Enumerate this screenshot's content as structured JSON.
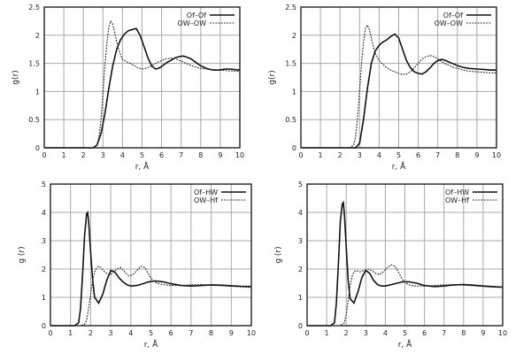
{
  "chart_data": [
    {
      "type": "line",
      "xlabel": "r, Å",
      "ylabel": "g(r)",
      "xlim": [
        0,
        10
      ],
      "ylim": [
        0,
        2.5
      ],
      "xticks": [
        "0",
        "1",
        "2",
        "3",
        "4",
        "5",
        "6",
        "7",
        "8",
        "9",
        "10"
      ],
      "yticks": [
        "0",
        "0.5",
        "1",
        "1.5",
        "2",
        "2.5"
      ],
      "grid": true,
      "legend_position": "top-right",
      "series": [
        {
          "name": "Of–Of",
          "style": "solid",
          "x": [
            0,
            2.5,
            2.7,
            2.9,
            3.1,
            3.3,
            3.5,
            3.7,
            3.9,
            4.1,
            4.3,
            4.5,
            4.7,
            4.9,
            5.1,
            5.3,
            5.5,
            5.7,
            5.9,
            6.1,
            6.3,
            6.5,
            6.7,
            6.9,
            7.1,
            7.3,
            7.5,
            7.7,
            7.9,
            8.1,
            8.3,
            8.5,
            8.7,
            8.9,
            9.1,
            9.3,
            9.5,
            9.7,
            10
          ],
          "y": [
            0,
            0,
            0.05,
            0.25,
            0.6,
            1.05,
            1.45,
            1.75,
            1.92,
            2.02,
            2.08,
            2.1,
            2.12,
            2.0,
            1.8,
            1.6,
            1.45,
            1.4,
            1.42,
            1.47,
            1.52,
            1.56,
            1.6,
            1.62,
            1.63,
            1.61,
            1.58,
            1.53,
            1.48,
            1.44,
            1.41,
            1.39,
            1.38,
            1.38,
            1.39,
            1.4,
            1.4,
            1.39,
            1.38
          ]
        },
        {
          "name": "OW–OW",
          "style": "dotted",
          "x": [
            0,
            2.5,
            2.7,
            2.8,
            2.9,
            3.0,
            3.1,
            3.2,
            3.3,
            3.4,
            3.5,
            3.6,
            3.7,
            3.8,
            3.9,
            4.0,
            4.2,
            4.4,
            4.6,
            4.8,
            5.0,
            5.2,
            5.4,
            5.6,
            5.8,
            6.0,
            6.2,
            6.4,
            6.6,
            6.8,
            7.0,
            7.2,
            7.4,
            7.6,
            7.8,
            8.0,
            8.3,
            8.6,
            9.0,
            9.4,
            9.7,
            10
          ],
          "y": [
            0,
            0,
            0.05,
            0.2,
            0.5,
            0.95,
            1.45,
            1.85,
            2.15,
            2.25,
            2.2,
            2.05,
            1.88,
            1.75,
            1.65,
            1.57,
            1.53,
            1.5,
            1.46,
            1.42,
            1.4,
            1.41,
            1.44,
            1.48,
            1.52,
            1.55,
            1.58,
            1.59,
            1.59,
            1.57,
            1.54,
            1.51,
            1.48,
            1.45,
            1.43,
            1.41,
            1.4,
            1.39,
            1.38,
            1.37,
            1.36,
            1.36
          ]
        }
      ]
    },
    {
      "type": "line",
      "xlabel": "r, Å",
      "ylabel": "g(r)",
      "xlim": [
        0,
        10
      ],
      "ylim": [
        0,
        2.5
      ],
      "xticks": [
        "0",
        "1",
        "2",
        "3",
        "4",
        "5",
        "6",
        "7",
        "8",
        "9",
        "10"
      ],
      "yticks": [
        "0",
        "0.5",
        "1",
        "1.5",
        "2",
        "2.5"
      ],
      "grid": true,
      "legend_position": "top-right",
      "series": [
        {
          "name": "Of–Of",
          "style": "solid",
          "x": [
            0,
            2.8,
            3.0,
            3.2,
            3.4,
            3.6,
            3.8,
            4.0,
            4.2,
            4.4,
            4.6,
            4.8,
            5.0,
            5.2,
            5.4,
            5.6,
            5.8,
            6.0,
            6.2,
            6.4,
            6.6,
            6.8,
            7.0,
            7.2,
            7.4,
            7.6,
            7.8,
            8.0,
            8.3,
            8.6,
            9.0,
            9.4,
            9.7,
            10
          ],
          "y": [
            0,
            0,
            0.08,
            0.5,
            1.05,
            1.5,
            1.72,
            1.82,
            1.88,
            1.92,
            1.98,
            2.02,
            1.95,
            1.75,
            1.55,
            1.42,
            1.35,
            1.32,
            1.31,
            1.35,
            1.42,
            1.5,
            1.55,
            1.57,
            1.55,
            1.52,
            1.49,
            1.46,
            1.43,
            1.41,
            1.4,
            1.39,
            1.38,
            1.38
          ]
        },
        {
          "name": "OW–OW",
          "style": "dotted",
          "x": [
            0,
            2.5,
            2.7,
            2.8,
            2.9,
            3.0,
            3.1,
            3.2,
            3.3,
            3.4,
            3.5,
            3.6,
            3.7,
            3.8,
            4.0,
            4.2,
            4.4,
            4.6,
            4.8,
            5.0,
            5.2,
            5.4,
            5.6,
            5.8,
            6.0,
            6.2,
            6.4,
            6.6,
            6.8,
            7.0,
            7.2,
            7.4,
            7.6,
            7.8,
            8.0,
            8.3,
            8.6,
            9.0,
            9.4,
            9.7,
            10
          ],
          "y": [
            0,
            0,
            0.05,
            0.2,
            0.55,
            1.0,
            1.5,
            1.88,
            2.12,
            2.18,
            2.1,
            1.95,
            1.8,
            1.68,
            1.55,
            1.48,
            1.42,
            1.38,
            1.35,
            1.32,
            1.3,
            1.31,
            1.35,
            1.42,
            1.5,
            1.58,
            1.62,
            1.64,
            1.62,
            1.58,
            1.53,
            1.49,
            1.46,
            1.43,
            1.41,
            1.38,
            1.36,
            1.35,
            1.34,
            1.33,
            1.33
          ]
        }
      ]
    },
    {
      "type": "line",
      "xlabel": "r, Å",
      "ylabel": "g (r)",
      "xlim": [
        0,
        10
      ],
      "ylim": [
        0,
        5
      ],
      "xticks": [
        "0",
        "1",
        "2",
        "3",
        "4",
        "5",
        "6",
        "7",
        "8",
        "9",
        "10"
      ],
      "yticks": [
        "0",
        "1",
        "2",
        "3",
        "4",
        "5"
      ],
      "grid": true,
      "legend_position": "top-right",
      "series": [
        {
          "name": "Of–HW",
          "style": "solid",
          "x": [
            0,
            1.2,
            1.4,
            1.5,
            1.6,
            1.7,
            1.8,
            1.85,
            1.9,
            2.0,
            2.1,
            2.2,
            2.4,
            2.6,
            2.8,
            3.0,
            3.2,
            3.4,
            3.6,
            3.8,
            4.0,
            4.3,
            4.6,
            4.9,
            5.2,
            5.6,
            6.0,
            6.5,
            7.0,
            7.5,
            8.0,
            8.5,
            9.0,
            9.5,
            10
          ],
          "y": [
            0,
            0,
            0.1,
            0.6,
            1.8,
            3.2,
            3.95,
            4.0,
            3.7,
            2.6,
            1.6,
            1.0,
            0.8,
            1.1,
            1.6,
            1.95,
            1.9,
            1.7,
            1.55,
            1.45,
            1.4,
            1.42,
            1.48,
            1.55,
            1.58,
            1.55,
            1.48,
            1.42,
            1.4,
            1.42,
            1.44,
            1.43,
            1.41,
            1.39,
            1.38
          ]
        },
        {
          "name": "OW–Hf",
          "style": "dotted",
          "x": [
            0,
            1.5,
            1.7,
            1.8,
            1.9,
            2.0,
            2.1,
            2.2,
            2.3,
            2.4,
            2.5,
            2.7,
            2.9,
            3.1,
            3.3,
            3.5,
            3.7,
            3.9,
            4.1,
            4.3,
            4.5,
            4.7,
            4.9,
            5.1,
            5.3,
            5.6,
            6.0,
            6.5,
            7.0,
            7.5,
            8.0,
            8.5,
            9.0,
            9.5,
            10
          ],
          "y": [
            0,
            0,
            0.05,
            0.2,
            0.6,
            1.1,
            1.6,
            1.9,
            2.05,
            2.1,
            2.05,
            1.9,
            1.8,
            1.85,
            2.0,
            2.05,
            1.9,
            1.75,
            1.8,
            1.95,
            2.1,
            2.05,
            1.8,
            1.6,
            1.5,
            1.45,
            1.42,
            1.42,
            1.44,
            1.45,
            1.43,
            1.41,
            1.39,
            1.37,
            1.35
          ]
        }
      ]
    },
    {
      "type": "line",
      "xlabel": "r, Å",
      "ylabel": "g (r)",
      "xlim": [
        0,
        10
      ],
      "ylim": [
        0,
        5
      ],
      "xticks": [
        "0",
        "1",
        "2",
        "3",
        "4",
        "5",
        "6",
        "7",
        "8",
        "9",
        "10"
      ],
      "yticks": [
        "0",
        "1",
        "2",
        "3",
        "4",
        "5"
      ],
      "grid": true,
      "legend_position": "top-right",
      "series": [
        {
          "name": "Of–HW",
          "style": "solid",
          "x": [
            0,
            1.2,
            1.4,
            1.5,
            1.6,
            1.7,
            1.8,
            1.85,
            1.9,
            2.0,
            2.1,
            2.2,
            2.4,
            2.6,
            2.8,
            3.0,
            3.2,
            3.4,
            3.6,
            3.8,
            4.0,
            4.3,
            4.6,
            4.9,
            5.2,
            5.6,
            6.0,
            6.5,
            7.0,
            7.5,
            8.0,
            8.5,
            9.0,
            9.5,
            10
          ],
          "y": [
            0,
            0,
            0.1,
            0.8,
            2.2,
            3.7,
            4.3,
            4.35,
            4.0,
            2.8,
            1.6,
            0.95,
            0.8,
            1.2,
            1.7,
            1.95,
            1.85,
            1.6,
            1.45,
            1.4,
            1.4,
            1.45,
            1.5,
            1.55,
            1.55,
            1.5,
            1.42,
            1.38,
            1.4,
            1.44,
            1.45,
            1.43,
            1.4,
            1.38,
            1.36
          ]
        },
        {
          "name": "OW–Hf",
          "style": "dotted",
          "x": [
            0,
            1.7,
            1.9,
            2.0,
            2.1,
            2.2,
            2.3,
            2.4,
            2.5,
            2.7,
            2.9,
            3.1,
            3.3,
            3.5,
            3.7,
            3.9,
            4.1,
            4.3,
            4.5,
            4.7,
            4.9,
            5.1,
            5.3,
            5.6,
            6.0,
            6.5,
            7.0,
            7.5,
            8.0,
            8.5,
            9.0,
            9.5,
            10
          ],
          "y": [
            0,
            0,
            0.1,
            0.4,
            0.9,
            1.4,
            1.75,
            1.9,
            1.95,
            1.9,
            1.95,
            2.0,
            1.95,
            1.85,
            1.8,
            1.9,
            2.05,
            2.15,
            2.1,
            1.85,
            1.6,
            1.48,
            1.42,
            1.4,
            1.4,
            1.42,
            1.44,
            1.45,
            1.43,
            1.41,
            1.38,
            1.36,
            1.35
          ]
        }
      ]
    }
  ]
}
